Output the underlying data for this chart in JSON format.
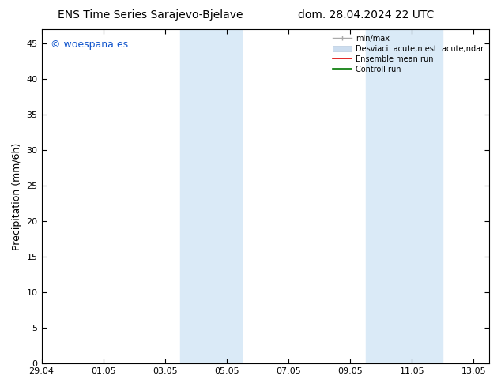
{
  "title_left": "ENS Time Series Sarajevo-Bjelave",
  "title_right": "dom. 28.04.2024 22 UTC",
  "ylabel": "Precipitation (mm/6h)",
  "watermark": "© woespana.es",
  "watermark_color": "#1155cc",
  "background_color": "#ffffff",
  "plot_bg_color": "#ffffff",
  "ylim": [
    0,
    47
  ],
  "yticks": [
    0,
    5,
    10,
    15,
    20,
    25,
    30,
    35,
    40,
    45
  ],
  "xlim": [
    0,
    14.5
  ],
  "x_tick_labels": [
    "29.04",
    "01.05",
    "03.05",
    "05.05",
    "07.05",
    "09.05",
    "11.05",
    "13.05"
  ],
  "x_tick_positions": [
    0,
    2,
    4,
    6,
    8,
    10,
    12,
    14
  ],
  "shaded_regions": [
    {
      "x_start": 4.5,
      "x_end": 6.5
    },
    {
      "x_start": 10.5,
      "x_end": 13.0
    }
  ],
  "shaded_color": "#daeaf7",
  "shaded_alpha": 1.0,
  "title_fontsize": 10,
  "tick_fontsize": 8,
  "label_fontsize": 9,
  "legend_fontsize": 7,
  "watermark_fontsize": 9
}
